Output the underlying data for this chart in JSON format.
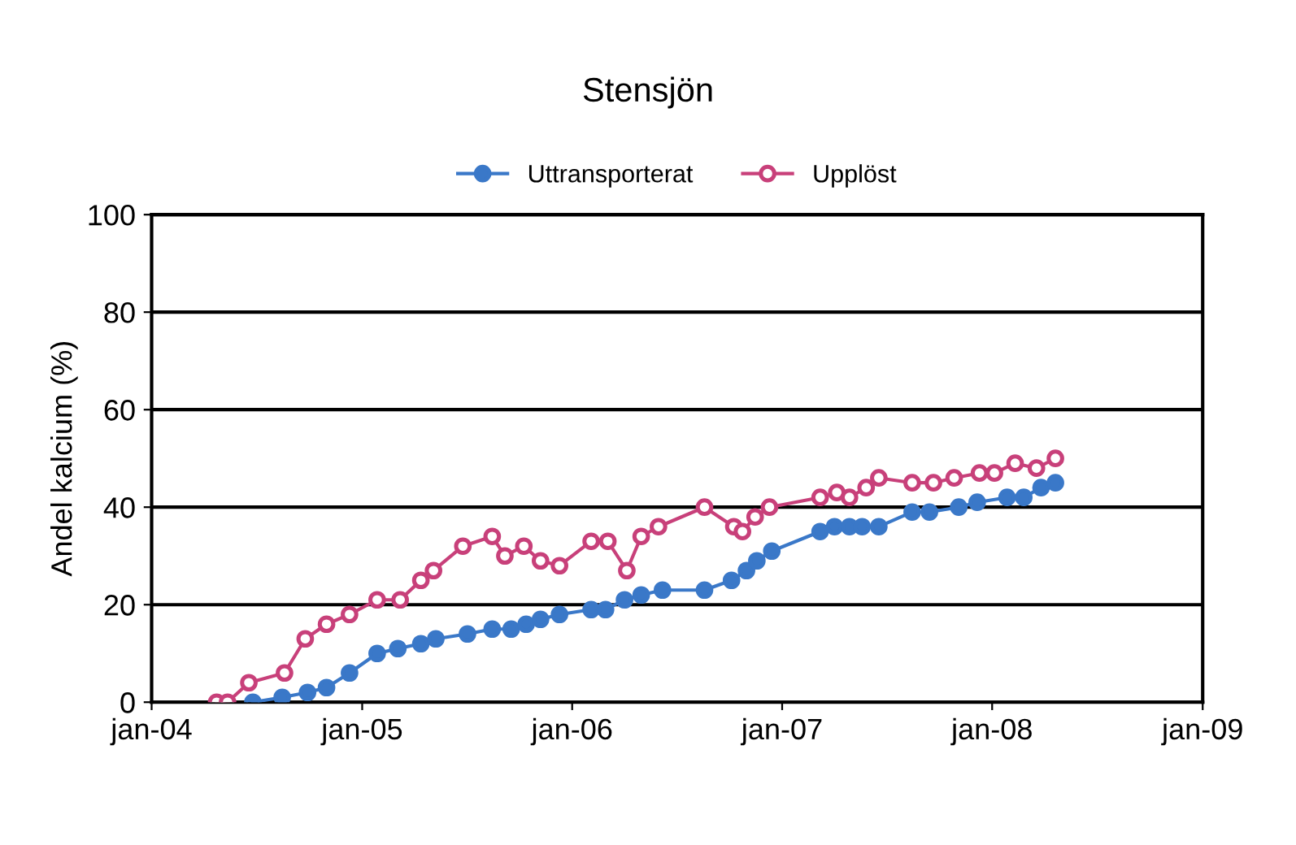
{
  "chart_data": {
    "type": "line",
    "title": "Stensjön",
    "ylabel": "Andel kalcium (%)",
    "xlim": [
      "2004-01-01",
      "2009-01-01"
    ],
    "xticks": [
      {
        "value": "2004-01-01",
        "label": "jan-04"
      },
      {
        "value": "2005-01-01",
        "label": "jan-05"
      },
      {
        "value": "2006-01-01",
        "label": "jan-06"
      },
      {
        "value": "2007-01-01",
        "label": "jan-07"
      },
      {
        "value": "2008-01-01",
        "label": "jan-08"
      },
      {
        "value": "2009-01-01",
        "label": "jan-09"
      }
    ],
    "ylim": [
      0,
      100
    ],
    "yticks": [
      0,
      20,
      40,
      60,
      80,
      100
    ],
    "grid": "y",
    "legend": "top",
    "marker": "circle",
    "series": [
      {
        "name": "Uttransporterat",
        "color": "#3a78c8",
        "x": [
          "2004-06-25",
          "2004-08-15",
          "2004-09-28",
          "2004-10-31",
          "2004-12-10",
          "2005-01-27",
          "2005-03-04",
          "2005-04-13",
          "2005-05-09",
          "2005-07-03",
          "2005-08-15",
          "2005-09-17",
          "2005-10-13",
          "2005-11-07",
          "2005-12-10",
          "2006-02-03",
          "2006-02-28",
          "2006-04-02",
          "2006-05-01",
          "2006-06-07",
          "2006-08-19",
          "2006-10-05",
          "2006-10-31",
          "2006-11-18",
          "2006-12-14",
          "2007-03-08",
          "2007-04-02",
          "2007-04-28",
          "2007-05-20",
          "2007-06-18",
          "2007-08-15",
          "2007-09-14",
          "2007-11-04",
          "2007-12-06",
          "2008-01-27",
          "2008-02-25",
          "2008-03-26",
          "2008-04-20"
        ],
        "values": [
          0,
          1,
          2,
          3,
          6,
          10,
          11,
          12,
          13,
          14,
          15,
          15,
          16,
          17,
          18,
          19,
          19,
          21,
          22,
          23,
          23,
          25,
          27,
          29,
          31,
          35,
          36,
          36,
          36,
          36,
          39,
          39,
          40,
          41,
          42,
          42,
          44,
          45
        ]
      },
      {
        "name": "Upplöst",
        "color": "#c8407a",
        "x": [
          "2004-04-23",
          "2004-05-12",
          "2004-06-18",
          "2004-08-19",
          "2004-09-24",
          "2004-10-31",
          "2004-12-10",
          "2005-01-27",
          "2005-03-08",
          "2005-04-13",
          "2005-05-05",
          "2005-06-25",
          "2005-08-15",
          "2005-09-06",
          "2005-10-09",
          "2005-11-07",
          "2005-12-10",
          "2006-02-03",
          "2006-03-04",
          "2006-04-06",
          "2006-05-01",
          "2006-05-31",
          "2006-08-19",
          "2006-10-09",
          "2006-10-24",
          "2006-11-15",
          "2006-12-10",
          "2007-03-08",
          "2007-04-06",
          "2007-04-28",
          "2007-05-27",
          "2007-06-18",
          "2007-08-15",
          "2007-09-21",
          "2007-10-27",
          "2007-12-10",
          "2008-01-05",
          "2008-02-10",
          "2008-03-18",
          "2008-04-20"
        ],
        "values": [
          0,
          0,
          4,
          6,
          13,
          16,
          18,
          21,
          21,
          25,
          27,
          32,
          34,
          30,
          32,
          29,
          28,
          33,
          33,
          27,
          34,
          36,
          40,
          36,
          35,
          38,
          40,
          42,
          43,
          42,
          44,
          46,
          45,
          45,
          46,
          47,
          47,
          49,
          48,
          50
        ]
      }
    ]
  }
}
